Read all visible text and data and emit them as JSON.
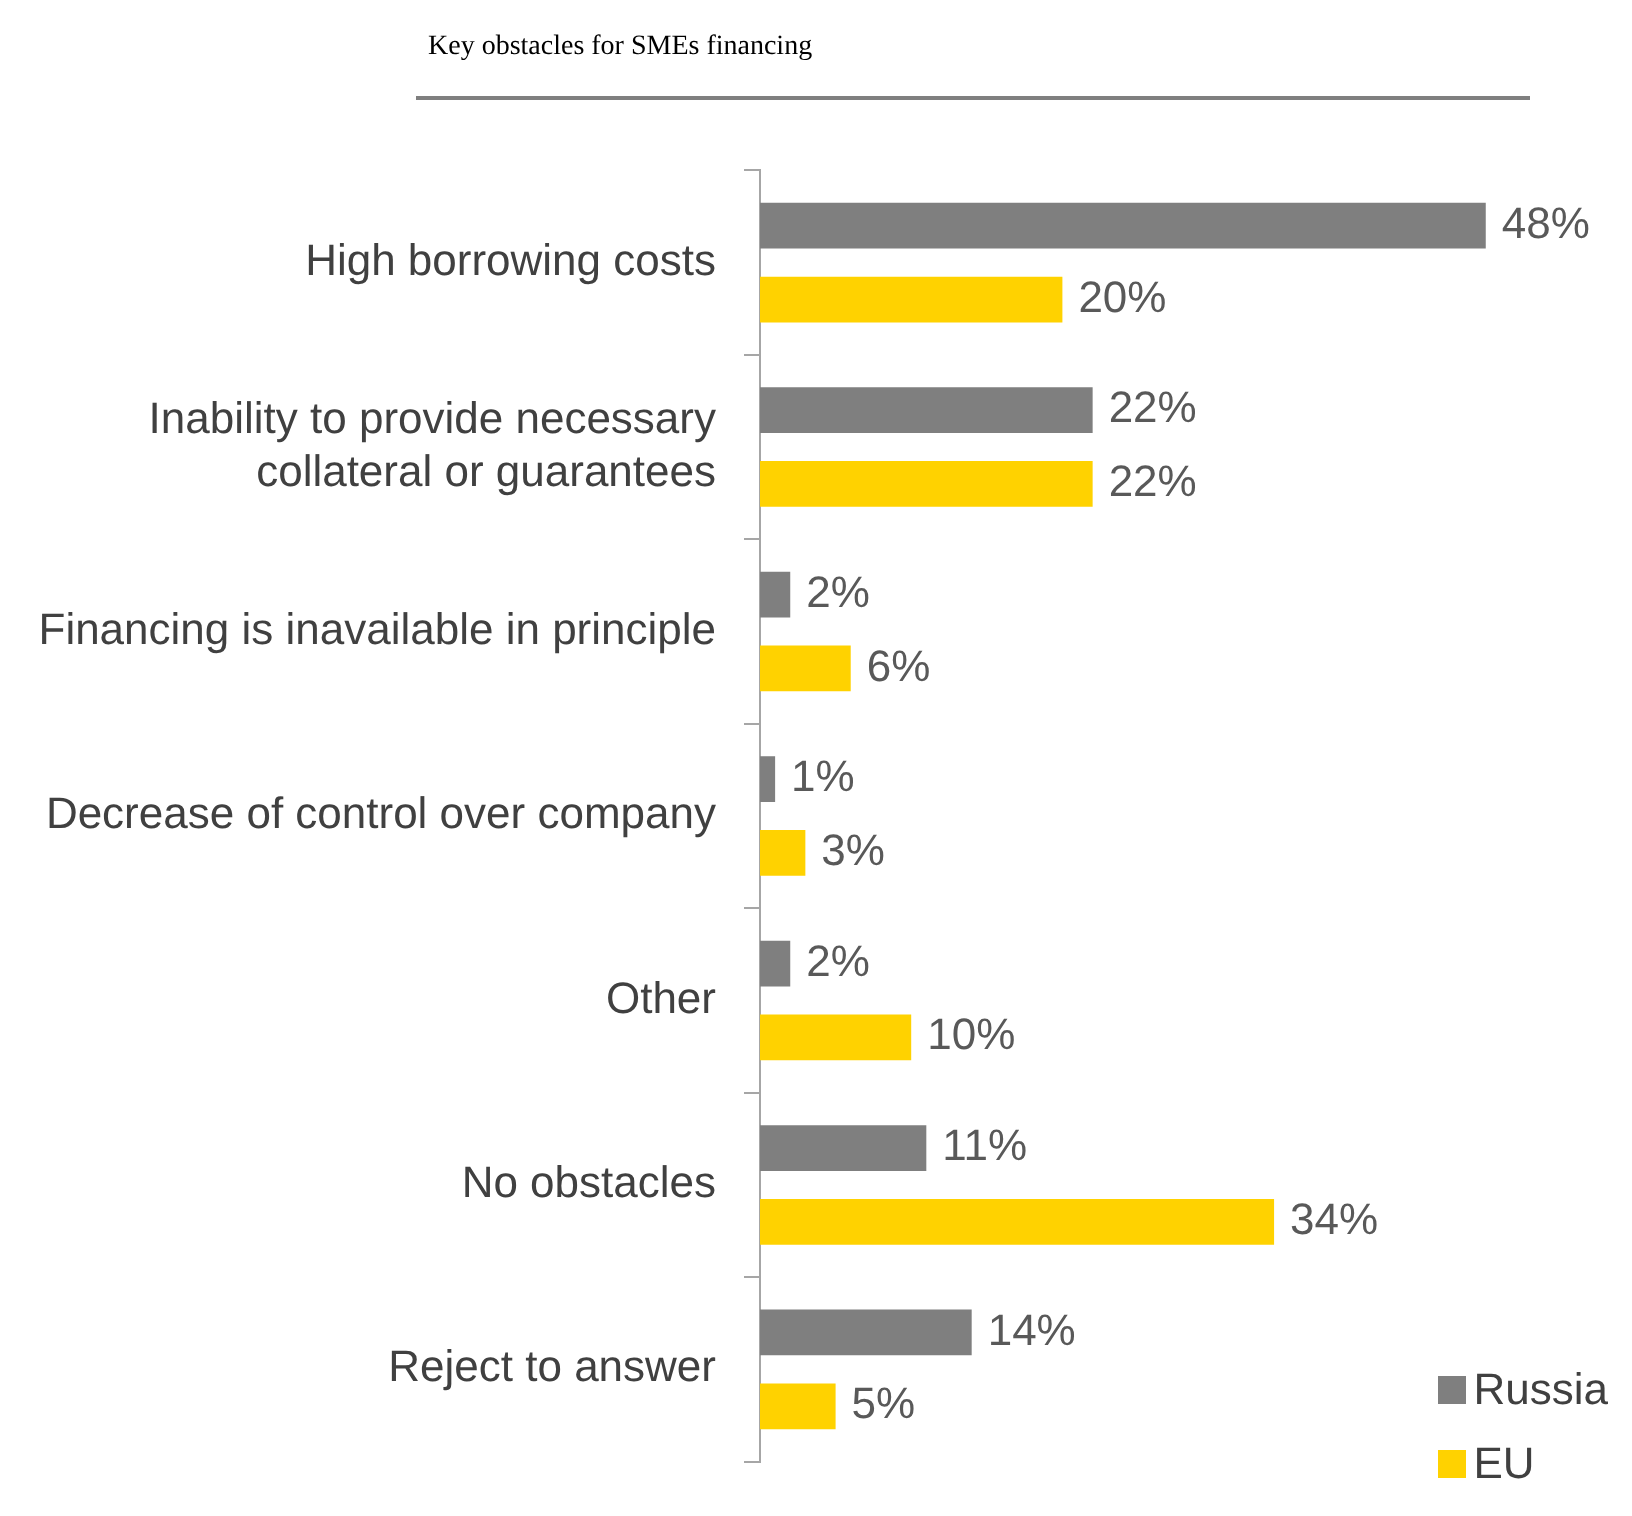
{
  "chart_data": {
    "type": "bar",
    "orientation": "horizontal",
    "title": "Key obstacles for SMEs financing",
    "categories": [
      "High borrowing costs",
      "Inability to provide necessary collateral or guarantees",
      "Financing is inavailable in principle",
      "Decrease of control over company",
      "Other",
      "No obstacles",
      "Reject to answer"
    ],
    "series": [
      {
        "name": "Russia",
        "color": "#7f7f7f",
        "values": [
          48,
          22,
          2,
          1,
          2,
          11,
          14
        ],
        "value_labels": [
          "48%",
          "22%",
          "2%",
          "1%",
          "2%",
          "11%",
          "14%"
        ]
      },
      {
        "name": "EU",
        "color": "#ffd200",
        "values": [
          20,
          22,
          6,
          3,
          10,
          34,
          5
        ],
        "value_labels": [
          "20%",
          "22%",
          "6%",
          "3%",
          "10%",
          "34%",
          "5%"
        ]
      }
    ],
    "legend": "bottom right",
    "grid": false
  }
}
